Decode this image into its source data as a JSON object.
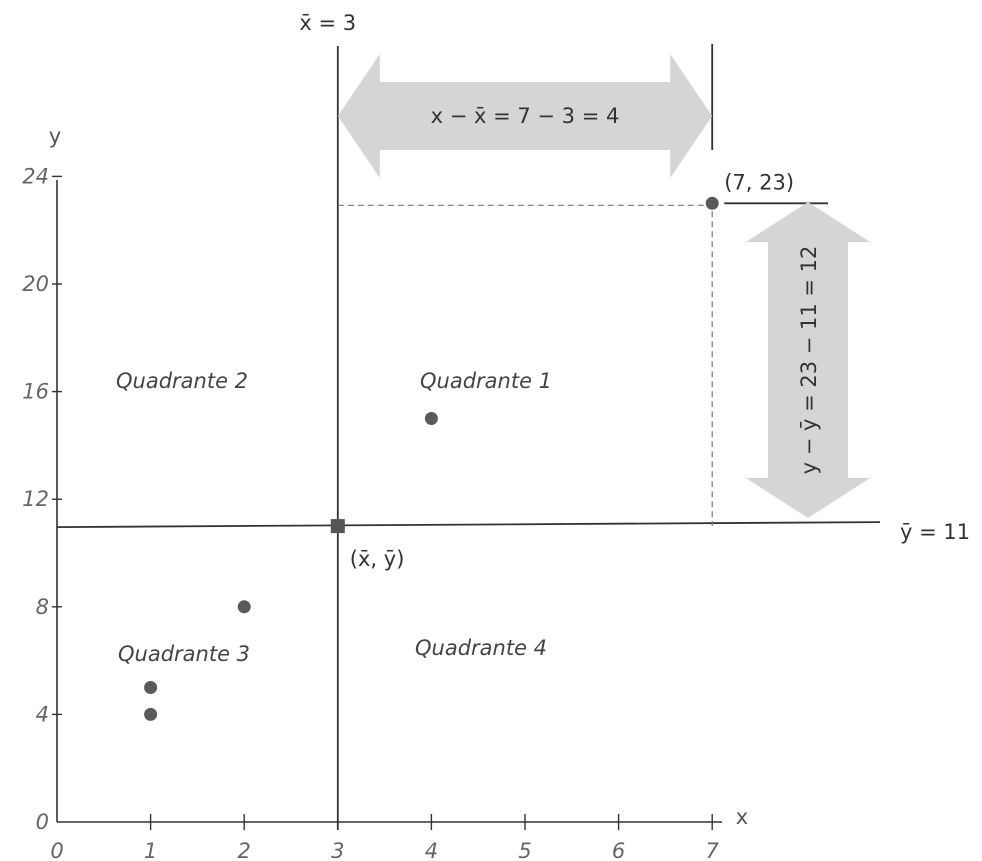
{
  "chart_data": {
    "type": "scatter",
    "x_axis": {
      "label": "x",
      "ticks": [
        "0",
        "1",
        "2",
        "3",
        "4",
        "5",
        "6",
        "7"
      ],
      "range": [
        0,
        7.3
      ]
    },
    "y_axis": {
      "label": "y",
      "ticks": [
        "0",
        "4",
        "8",
        "12",
        "16",
        "20",
        "24"
      ],
      "range": [
        0,
        24.6
      ]
    },
    "points": [
      {
        "x": 1,
        "y": 4
      },
      {
        "x": 1,
        "y": 5
      },
      {
        "x": 2,
        "y": 8
      },
      {
        "x": 4,
        "y": 15
      },
      {
        "x": 7,
        "y": 23
      }
    ],
    "mean_point": {
      "x": 3,
      "y": 11,
      "label": "(x̄, ȳ)"
    },
    "mean_x": {
      "value": 3,
      "label": "x̄ = 3"
    },
    "mean_y": {
      "value": 11,
      "label": "ȳ = 11"
    },
    "highlight_label": "(7, 23)",
    "annotations": {
      "horizontal_deviation": "x − x̄ = 7 − 3 = 4",
      "vertical_deviation": "y − ȳ = 23 − 11 = 12"
    },
    "quadrants": [
      "Quadrante 1",
      "Quadrante 2",
      "Quadrante 3",
      "Quadrante 4"
    ],
    "grid": false
  }
}
